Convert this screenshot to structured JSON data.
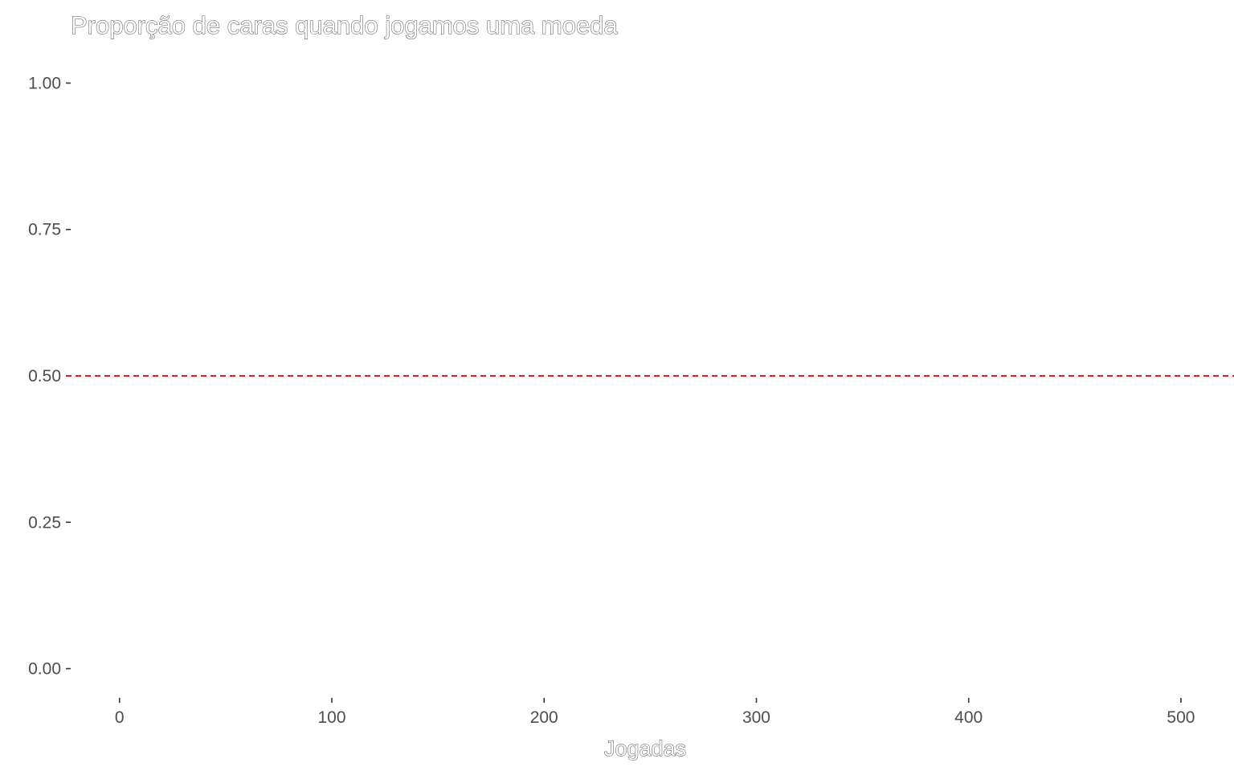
{
  "chart_data": {
    "type": "line",
    "title": "Proporção de caras quando jogamos uma moeda",
    "xlabel": "Jogadas",
    "ylabel": "",
    "xlim": [
      -23,
      525
    ],
    "ylim": [
      -0.05,
      1.05
    ],
    "x_ticks": [
      0,
      100,
      200,
      300,
      400,
      500
    ],
    "x_tick_labels": [
      "0",
      "100",
      "200",
      "300",
      "400",
      "500"
    ],
    "y_ticks": [
      0,
      0.25,
      0.5,
      0.75,
      1
    ],
    "y_tick_labels": [
      "0.00",
      "0.25",
      "0.50",
      "0.75",
      "1.00"
    ],
    "reference_line": {
      "y": 0.5,
      "style": "dashed",
      "color": "#e41a1c"
    },
    "series": [],
    "grid": false,
    "legend": "none"
  }
}
